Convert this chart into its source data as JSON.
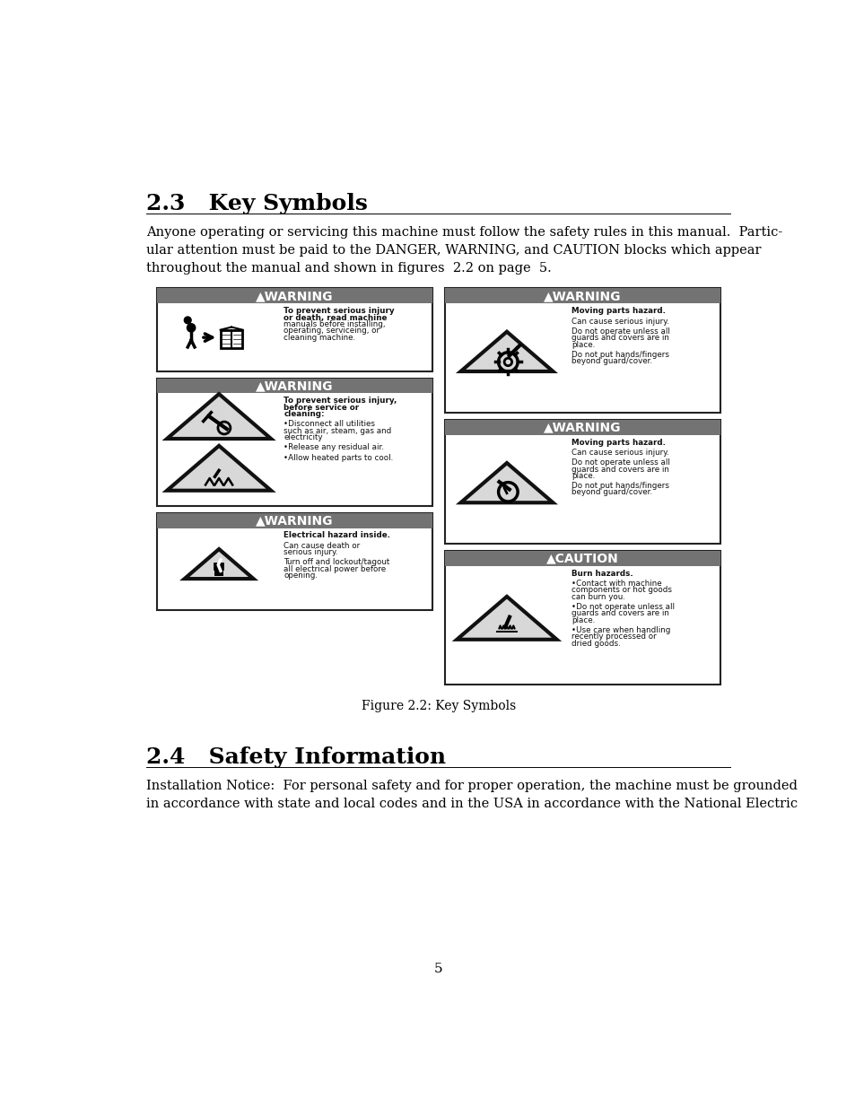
{
  "title_section": "2.3   Key Symbols",
  "title_fontsize": 18,
  "body_text": "Anyone operating or servicing this machine must follow the safety rules in this manual.  Partic-\nular attention must be paid to the DANGER, WARNING, and CAUTION blocks which appear\nthroughout the manual and shown in figures  2.2 on page  5.",
  "body_fontsize": 10.5,
  "section2_title": "2.4   Safety Information",
  "section2_fontsize": 18,
  "section2_body": "Installation Notice:  For personal safety and for proper operation, the machine must be grounded\nin accordance with state and local codes and in the USA in accordance with the National Electric",
  "section2_body_fontsize": 10.5,
  "figure_caption": "Figure 2.2: Key Symbols",
  "page_number": "5",
  "bg_color": "#ffffff",
  "header_bg": "#737373",
  "header_fg": "#ffffff",
  "box_edge": "#222222",
  "left_panels": [
    {
      "header": "▲WARNING",
      "body_lines": [
        "To prevent serious injury",
        "or death, read machine",
        "manuals before installing,",
        "operating, serviceing, or",
        "cleaning machine."
      ],
      "bold_lines": [
        0,
        1
      ]
    },
    {
      "header": "▲WARNING",
      "body_lines": [
        "To prevent serious injury,",
        "before service or",
        "cleaning:",
        "",
        "•Disconnect all utilities",
        "such as air, steam, gas and",
        "electricity",
        "",
        "•Release any residual air.",
        "",
        "•Allow heated parts to cool."
      ],
      "bold_lines": [
        0,
        1,
        2
      ]
    },
    {
      "header": "▲WARNING",
      "body_lines": [
        "Electrical hazard inside.",
        "",
        "Can cause death or",
        "serious injury.",
        "",
        "Turn off and lockout/tagout",
        "all electrical power before",
        "opening."
      ],
      "bold_lines": [
        0
      ]
    }
  ],
  "right_panels": [
    {
      "header": "▲WARNING",
      "header_bg": "#737373",
      "body_lines": [
        "Moving parts hazard.",
        "",
        "Can cause serious injury.",
        "",
        "Do not operate unless all",
        "guards and covers are in",
        "place.",
        "",
        "Do not put hands/fingers",
        "beyond guard/cover."
      ],
      "bold_lines": [
        0
      ]
    },
    {
      "header": "▲WARNING",
      "header_bg": "#737373",
      "body_lines": [
        "Moving parts hazard.",
        "",
        "Can cause serious injury.",
        "",
        "Do not operate unless all",
        "guards and covers are in",
        "place.",
        "",
        "Do not put hands/fingers",
        "beyond guard/cover."
      ],
      "bold_lines": [
        0
      ]
    },
    {
      "header": "▲CAUTION",
      "header_bg": "#737373",
      "body_lines": [
        "Burn hazards.",
        "",
        "•Contact with machine",
        "components or hot goods",
        "can burn you.",
        "",
        "•Do not operate unless all",
        "guards and covers are in",
        "place.",
        "",
        "•Use care when handling",
        "recently processed or",
        "dried goods."
      ],
      "bold_lines": [
        0
      ]
    }
  ]
}
